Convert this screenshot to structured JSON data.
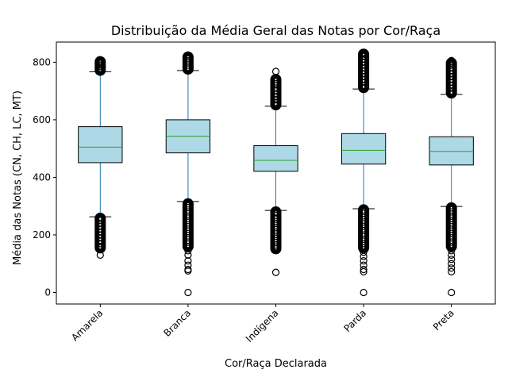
{
  "chart_data": {
    "type": "box",
    "title": "Distribuição da Média Geral das Notas por Cor/Raça",
    "xlabel": "Cor/Raça Declarada",
    "ylabel": "Média das Notas (CN, CH, LC, MT)",
    "ylim": [
      -40,
      870
    ],
    "yticks": [
      0,
      200,
      400,
      600,
      800
    ],
    "grid": false,
    "colors": {
      "box_fill": "#add8e6",
      "whisker": "#1f77b4",
      "median": "#2ca02c",
      "outlier": "#000000"
    },
    "categories": [
      "Amarela",
      "Branca",
      "Indígena",
      "Parda",
      "Preta"
    ],
    "boxes": [
      {
        "label": "Amarela",
        "whisker_low": 263,
        "q1": 451,
        "median": 505,
        "q3": 576,
        "whisker_high": 767,
        "outliers_low": [
          130,
          155,
          160,
          170,
          180,
          190,
          200,
          210,
          220,
          230,
          240,
          250,
          258
        ],
        "outliers_high": [
          772,
          778,
          785,
          790,
          796,
          802,
          807
        ]
      },
      {
        "label": "Branca",
        "whisker_low": 316,
        "q1": 485,
        "median": 543,
        "q3": 600,
        "whisker_high": 771,
        "outliers_low": [
          0,
          75,
          80,
          95,
          110,
          130,
          145,
          160,
          175,
          190,
          205,
          220,
          235,
          250,
          265,
          280,
          295,
          308
        ],
        "outliers_high": [
          776,
          782,
          790,
          798,
          805,
          812,
          818,
          825
        ]
      },
      {
        "label": "Indígena",
        "whisker_low": 285,
        "q1": 421,
        "median": 459,
        "q3": 510,
        "whisker_high": 647,
        "outliers_low": [
          70,
          152,
          165,
          180,
          195,
          210,
          225,
          240,
          255,
          268,
          280
        ],
        "outliers_high": [
          652,
          660,
          670,
          680,
          690,
          700,
          710,
          725,
          740,
          768
        ]
      },
      {
        "label": "Parda",
        "whisker_low": 291,
        "q1": 446,
        "median": 494,
        "q3": 552,
        "whisker_high": 707,
        "outliers_low": [
          0,
          72,
          80,
          95,
          110,
          125,
          140,
          155,
          170,
          185,
          200,
          215,
          230,
          245,
          260,
          275,
          287
        ],
        "outliers_high": [
          712,
          720,
          730,
          740,
          750,
          760,
          770,
          780,
          790,
          800,
          810,
          820,
          828,
          834
        ]
      },
      {
        "label": "Preta",
        "whisker_low": 299,
        "q1": 443,
        "median": 490,
        "q3": 541,
        "whisker_high": 688,
        "outliers_low": [
          0,
          72,
          85,
          100,
          115,
          130,
          145,
          160,
          175,
          190,
          205,
          220,
          235,
          250,
          265,
          280,
          294
        ],
        "outliers_high": [
          693,
          700,
          710,
          720,
          730,
          740,
          750,
          760,
          770,
          780,
          790,
          797,
          806
        ]
      }
    ]
  }
}
